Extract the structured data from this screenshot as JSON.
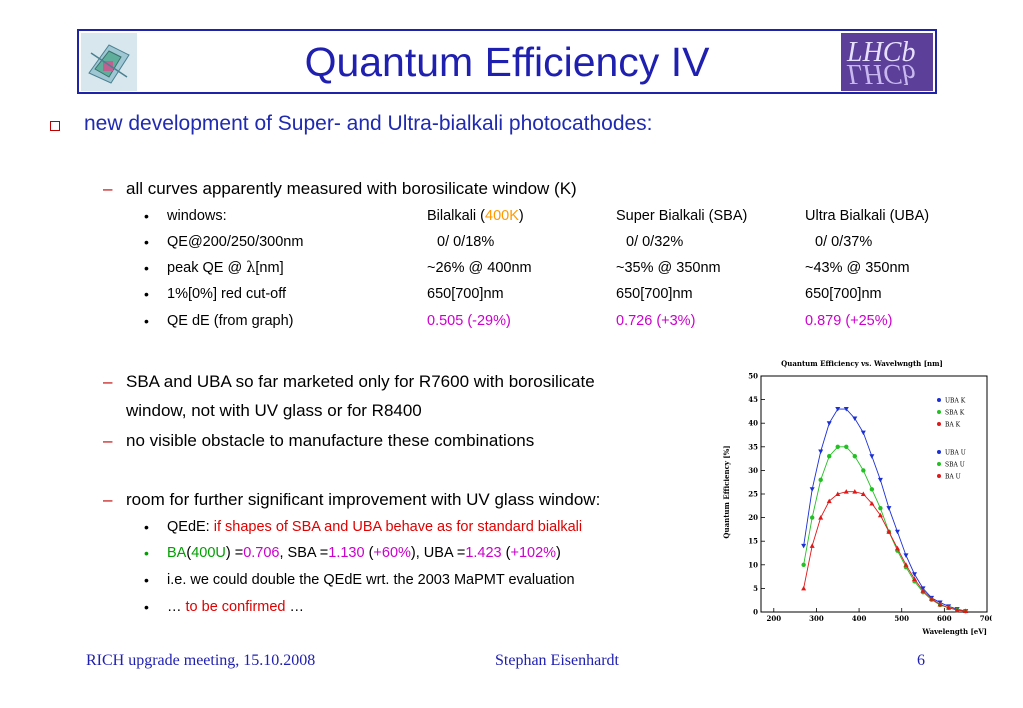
{
  "title": "Quantum Efficiency IV",
  "logo_text": "LHCb",
  "main_bullet": "new development of Super- and Ultra-bialkali photocathodes:",
  "sub1": "all curves apparently measured with borosilicate window (K)",
  "table": [
    [
      "windows:",
      "Bilalkali (",
      "400K",
      ")",
      "Super Bialkali (SBA)",
      "Ultra Bialkali (UBA)"
    ],
    [
      "QE@200/250/300nm",
      "0/  0/18%",
      "0/  0/32%",
      "0/  0/37%"
    ],
    [
      "peak QE @ ",
      "λ",
      "[nm]",
      "~26% @ 400nm",
      "~35% @ 350nm",
      "~43% @ 350nm"
    ],
    [
      "1%[0%] red cut-off",
      "650[700]nm",
      "650[700]nm",
      "650[700]nm"
    ],
    [
      "QE dE (from graph)",
      "0.505 (-29%)",
      "0.726 (+3%)",
      "0.879 (+25%)"
    ]
  ],
  "sub2_line1": "SBA and UBA so far marketed only for R7600 with borosilicate",
  "sub2_line2": "window, not with UV glass or for R8400",
  "sub3": "no visible obstacle to manufacture these combinations",
  "sub4": "room for further significant improvement with UV glass window:",
  "b1_a": "QEdE: ",
  "b1_b": "if shapes of SBA and UBA behave as for standard bialkali",
  "b2": [
    "BA",
    "(",
    "400U",
    ") =",
    "0.706",
    ", SBA =",
    "1.130",
    " (",
    "+60%",
    "),  UBA =",
    "1.423",
    "  (",
    "+102%",
    ")"
  ],
  "b3": "i.e. we could double the QEdE wrt. the 2003 MaPMT evaluation",
  "b4_a": "… ",
  "b4_b": "to be confirmed",
  "b4_c": " …",
  "footer": {
    "left": "RICH upgrade meeting, 15.10.2008",
    "center": "Stephan Eisenhardt",
    "right": "6"
  },
  "chart_data": {
    "type": "scatter",
    "title": "Quantum Efficiency vs. Wavelwngth [nm]",
    "xlabel": "Wavelength [eV]",
    "ylabel": "Quantum Efficiency [%]",
    "xlim": [
      170,
      700
    ],
    "ylim": [
      0,
      50
    ],
    "xticks": [
      200,
      300,
      400,
      500,
      600,
      700
    ],
    "yticks": [
      0,
      5,
      10,
      15,
      20,
      25,
      30,
      35,
      40,
      45,
      50
    ],
    "legend": [
      "UBA K",
      "SBA K",
      "BA K",
      "UBA U",
      "SBA U",
      "BA U"
    ],
    "colors": {
      "UBA": "#1a2fd6",
      "SBA": "#22c022",
      "BA": "#e01818"
    },
    "x": [
      270,
      290,
      310,
      330,
      350,
      370,
      390,
      410,
      430,
      450,
      470,
      490,
      510,
      530,
      550,
      570,
      590,
      610,
      630,
      650
    ],
    "series": [
      {
        "name": "UBA K",
        "values": [
          14,
          26,
          34,
          40,
          43,
          43,
          41,
          38,
          33,
          28,
          22,
          17,
          12,
          8,
          5,
          3,
          2,
          1.2,
          0.6,
          0.2
        ]
      },
      {
        "name": "SBA K",
        "values": [
          10,
          20,
          28,
          33,
          35,
          35,
          33,
          30,
          26,
          22,
          17,
          13,
          9.5,
          6.5,
          4.2,
          2.6,
          1.5,
          0.9,
          0.4,
          0.2
        ]
      },
      {
        "name": "BA K",
        "values": [
          5,
          14,
          20,
          23.5,
          25,
          25.5,
          25.5,
          25,
          23,
          20.5,
          17,
          13.5,
          10,
          7,
          4.5,
          2.8,
          1.6,
          0.9,
          0.4,
          0.2
        ]
      }
    ]
  }
}
